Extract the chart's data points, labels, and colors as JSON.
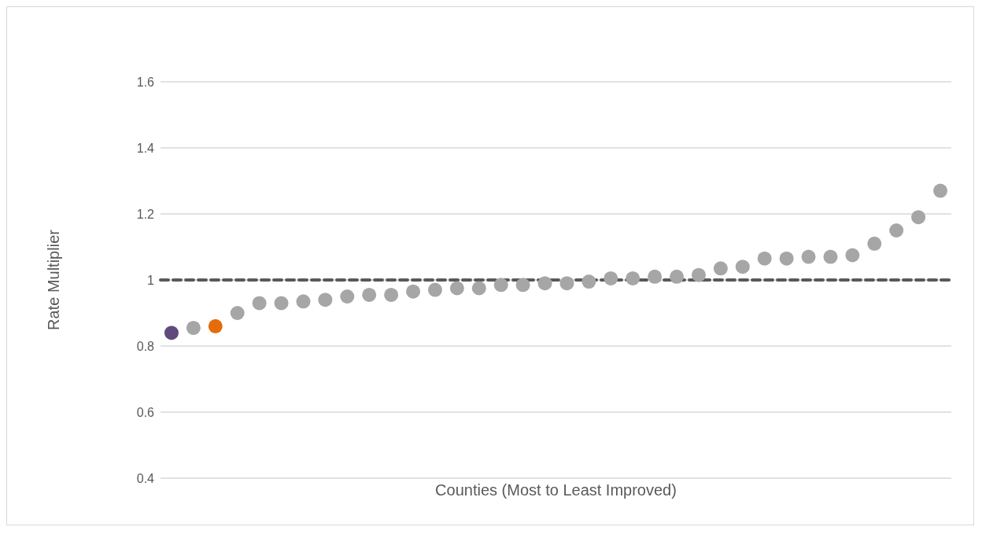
{
  "chart_data": {
    "type": "scatter",
    "xlabel": "Counties (Most to Least Improved)",
    "ylabel": "Rate Multiplier",
    "categories": [
      null,
      null,
      null,
      null,
      null,
      null,
      null,
      null,
      null,
      null,
      null,
      null,
      null,
      null,
      null,
      null,
      null,
      null,
      null,
      null,
      null,
      null,
      null,
      null,
      null,
      null,
      null,
      null,
      null,
      null,
      null,
      null,
      null,
      null,
      null,
      null
    ],
    "values": [
      0.84,
      0.855,
      0.86,
      0.9,
      0.93,
      0.93,
      0.935,
      0.94,
      0.95,
      0.955,
      0.955,
      0.965,
      0.97,
      0.975,
      0.975,
      0.985,
      0.985,
      0.99,
      0.99,
      0.995,
      1.005,
      1.005,
      1.01,
      1.01,
      1.015,
      1.035,
      1.04,
      1.065,
      1.065,
      1.07,
      1.07,
      1.075,
      1.11,
      1.15,
      1.19,
      1.27
    ],
    "colors": [
      "#604a7b",
      "#a6a6a6",
      "#e46c0a",
      "#a6a6a6",
      "#a6a6a6",
      "#a6a6a6",
      "#a6a6a6",
      "#a6a6a6",
      "#a6a6a6",
      "#a6a6a6",
      "#a6a6a6",
      "#a6a6a6",
      "#a6a6a6",
      "#a6a6a6",
      "#a6a6a6",
      "#a6a6a6",
      "#a6a6a6",
      "#a6a6a6",
      "#a6a6a6",
      "#a6a6a6",
      "#a6a6a6",
      "#a6a6a6",
      "#a6a6a6",
      "#a6a6a6",
      "#a6a6a6",
      "#a6a6a6",
      "#a6a6a6",
      "#a6a6a6",
      "#a6a6a6",
      "#a6a6a6",
      "#a6a6a6",
      "#a6a6a6",
      "#a6a6a6",
      "#a6a6a6",
      "#a6a6a6",
      "#a6a6a6"
    ],
    "ylim": [
      0.4,
      1.6
    ],
    "yticks": [
      0.4,
      0.6,
      0.8,
      1,
      1.2,
      1.4,
      1.6
    ],
    "ref_lines": [
      {
        "axis": "y",
        "value": 1,
        "color": "#595959",
        "line_style": "dashed"
      }
    ],
    "grid": "y",
    "tick_labels": "y",
    "marker": "circle"
  }
}
